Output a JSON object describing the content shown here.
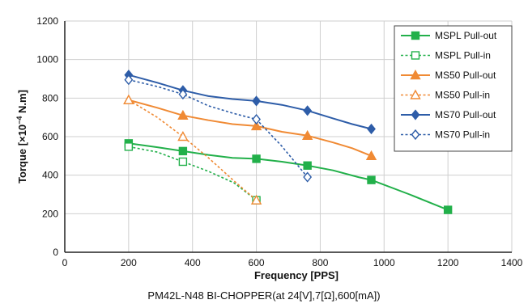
{
  "chart_data": {
    "type": "line",
    "caption": "PM42L-N48 BI-CHOPPER(at 24[V],7[Ω],600[mA])",
    "xlabel": "Frequency [PPS]",
    "ylabel_main": "Torque [×10",
    "ylabel_exp": "−4",
    "ylabel_unit": " N.m]",
    "xlim": [
      0,
      1400
    ],
    "ylim": [
      0,
      1200
    ],
    "xticks": [
      0,
      200,
      400,
      600,
      800,
      1000,
      1200,
      1400
    ],
    "yticks": [
      0,
      200,
      400,
      600,
      800,
      1000,
      1200
    ],
    "xtick_labels": [
      "0",
      "200",
      "400",
      "600",
      "800",
      "1000",
      "1200",
      "1400"
    ],
    "ytick_labels": [
      "0",
      "200",
      "400",
      "600",
      "800",
      "1000",
      "1200"
    ],
    "grid": true,
    "legend_position": "top-right",
    "series": [
      {
        "name": "MSPL Pull-out",
        "color": "#22b04a",
        "dash": false,
        "marker": "square",
        "filled": true,
        "points": [
          [
            200,
            565
          ],
          [
            290,
            545
          ],
          [
            370,
            525
          ],
          [
            450,
            505
          ],
          [
            525,
            490
          ],
          [
            600,
            485
          ],
          [
            680,
            470
          ],
          [
            760,
            450
          ],
          [
            840,
            425
          ],
          [
            920,
            390
          ],
          [
            960,
            375
          ],
          [
            1080,
            300
          ],
          [
            1200,
            220
          ]
        ],
        "markers": [
          [
            200,
            565
          ],
          [
            370,
            525
          ],
          [
            600,
            485
          ],
          [
            760,
            450
          ],
          [
            960,
            375
          ],
          [
            1200,
            220
          ]
        ]
      },
      {
        "name": "MSPL Pull-in",
        "color": "#22b04a",
        "dash": true,
        "marker": "square",
        "filled": false,
        "points": [
          [
            200,
            548
          ],
          [
            290,
            520
          ],
          [
            370,
            470
          ],
          [
            450,
            420
          ],
          [
            530,
            360
          ],
          [
            600,
            270
          ]
        ],
        "markers": [
          [
            200,
            548
          ],
          [
            370,
            470
          ],
          [
            600,
            270
          ]
        ]
      },
      {
        "name": "MS50 Pull-out",
        "color": "#f08a34",
        "dash": false,
        "marker": "triangle",
        "filled": true,
        "points": [
          [
            200,
            790
          ],
          [
            290,
            750
          ],
          [
            370,
            710
          ],
          [
            450,
            685
          ],
          [
            525,
            665
          ],
          [
            600,
            655
          ],
          [
            680,
            625
          ],
          [
            760,
            605
          ],
          [
            840,
            570
          ],
          [
            900,
            540
          ],
          [
            960,
            500
          ]
        ],
        "markers": [
          [
            200,
            790
          ],
          [
            370,
            710
          ],
          [
            600,
            655
          ],
          [
            760,
            605
          ],
          [
            960,
            500
          ]
        ]
      },
      {
        "name": "MS50 Pull-in",
        "color": "#f08a34",
        "dash": true,
        "marker": "triangle",
        "filled": false,
        "points": [
          [
            200,
            790
          ],
          [
            290,
            700
          ],
          [
            370,
            600
          ],
          [
            450,
            490
          ],
          [
            530,
            370
          ],
          [
            600,
            270
          ]
        ],
        "markers": [
          [
            200,
            790
          ],
          [
            370,
            600
          ],
          [
            600,
            270
          ]
        ]
      },
      {
        "name": "MS70 Pull-out",
        "color": "#2e5da8",
        "dash": false,
        "marker": "diamond",
        "filled": true,
        "points": [
          [
            200,
            920
          ],
          [
            290,
            880
          ],
          [
            370,
            840
          ],
          [
            450,
            810
          ],
          [
            525,
            795
          ],
          [
            600,
            785
          ],
          [
            680,
            765
          ],
          [
            760,
            735
          ],
          [
            840,
            695
          ],
          [
            900,
            665
          ],
          [
            960,
            640
          ]
        ],
        "markers": [
          [
            200,
            920
          ],
          [
            370,
            840
          ],
          [
            600,
            785
          ],
          [
            760,
            735
          ],
          [
            960,
            640
          ]
        ]
      },
      {
        "name": "MS70 Pull-in",
        "color": "#2e5da8",
        "dash": true,
        "marker": "diamond",
        "filled": false,
        "points": [
          [
            200,
            895
          ],
          [
            290,
            860
          ],
          [
            370,
            820
          ],
          [
            450,
            760
          ],
          [
            530,
            720
          ],
          [
            600,
            690
          ],
          [
            680,
            550
          ],
          [
            760,
            390
          ]
        ],
        "markers": [
          [
            200,
            895
          ],
          [
            370,
            820
          ],
          [
            600,
            690
          ],
          [
            760,
            390
          ]
        ]
      }
    ]
  }
}
